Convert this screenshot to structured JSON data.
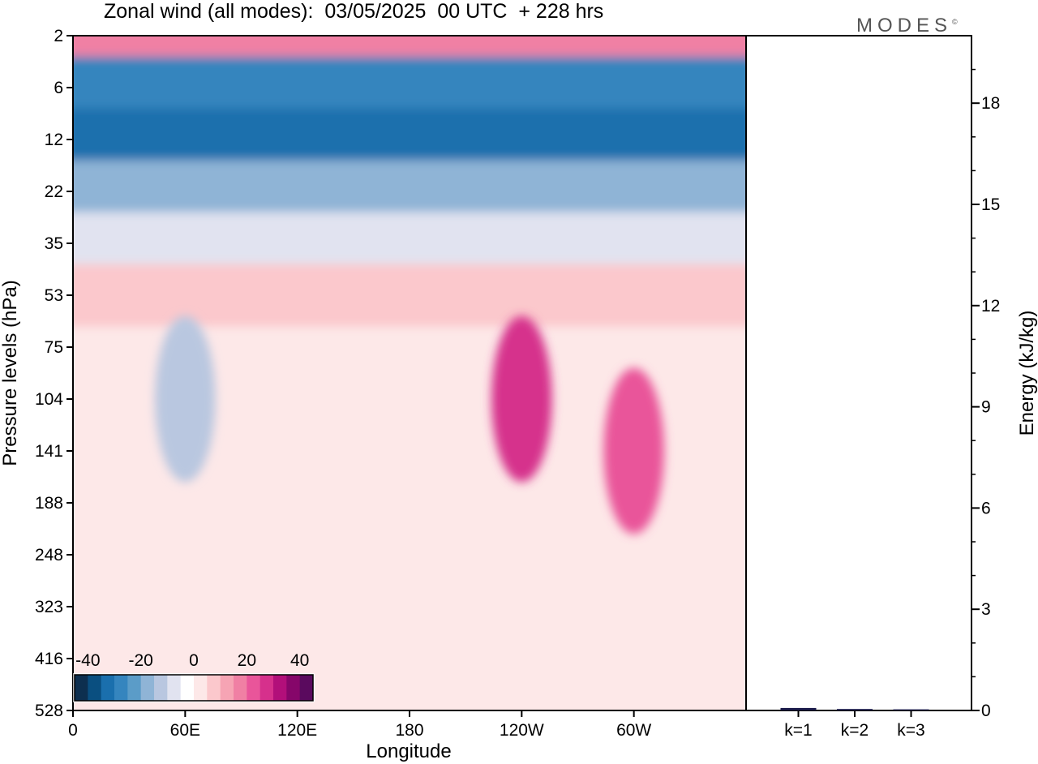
{
  "title": "Zonal wind (all modes):  03/05/2025  00 UTC  + 228 hrs",
  "logo": "MODES",
  "logo_mark": "©",
  "chart_data": [
    {
      "type": "heatmap",
      "title": "Zonal wind (all modes):  03/05/2025  00 UTC  + 228 hrs",
      "xlabel": "Longitude",
      "ylabel": "Pressure levels (hPa)",
      "x_ticks": [
        "0",
        "60E",
        "120E",
        "180",
        "120W",
        "60W"
      ],
      "y_ticks": [
        "2",
        "6",
        "12",
        "22",
        "35",
        "53",
        "75",
        "104",
        "141",
        "188",
        "248",
        "323",
        "416",
        "528"
      ],
      "colorbar": {
        "tick_labels": [
          "-40",
          "-20",
          "0",
          "20",
          "40"
        ],
        "colors": [
          "#0d2f4f",
          "#0a4f80",
          "#1a6fad",
          "#3585be",
          "#5b9cc8",
          "#8fb4d6",
          "#b9c7e0",
          "#e1e3f0",
          "#ffffff",
          "#fde8e8",
          "#fbc8cc",
          "#f6a4b4",
          "#f080a4",
          "#e9559a",
          "#d6308c",
          "#b20f7a",
          "#86066a",
          "#5a0a5e"
        ]
      },
      "features": [
        {
          "pressure": "2",
          "value": 15
        },
        {
          "pressure": "6",
          "value": -25
        },
        {
          "pressure": "12",
          "value": -28
        },
        {
          "pressure": "22",
          "value": -15
        },
        {
          "pressure": "35",
          "value": -5
        },
        {
          "pressure": "53",
          "value": 5
        },
        {
          "pressure": "104",
          "longitude": "120W",
          "value": 25
        },
        {
          "pressure": "104",
          "longitude": "60E",
          "value": -10
        },
        {
          "pressure": "141",
          "longitude": "60W",
          "value": 20
        }
      ]
    },
    {
      "type": "bar",
      "categories": [
        "k=1",
        "k=2",
        "k=3"
      ],
      "values": [
        0.05,
        0.02,
        0.01
      ],
      "ylabel": "Energy (kJ/kg)",
      "y_ticks": [
        "0",
        "3",
        "6",
        "9",
        "12",
        "15",
        "18"
      ],
      "ylim": [
        0,
        20
      ]
    }
  ]
}
